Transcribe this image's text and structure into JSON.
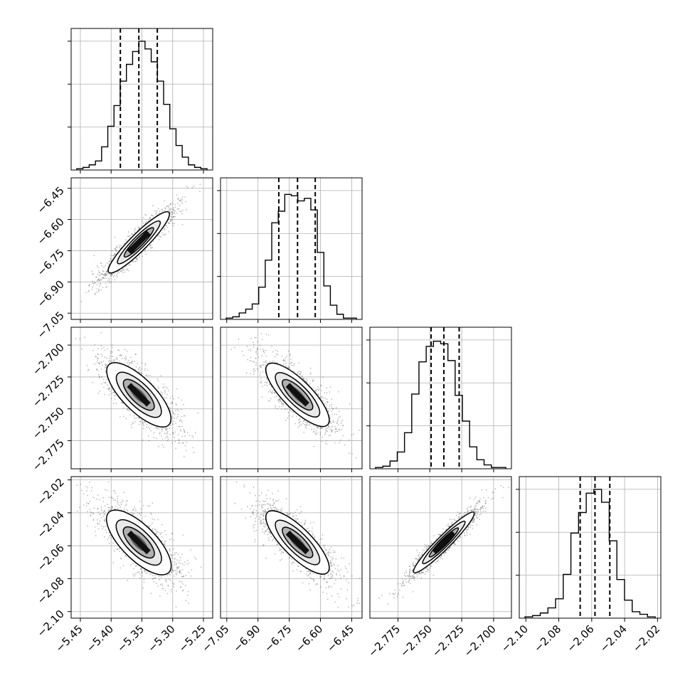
{
  "chart_data": {
    "type": "corner",
    "description_type": "scatter",
    "parameters": [
      {
        "ticks": [
          "-5.45",
          "-5.40",
          "-5.35",
          "-5.30",
          "-5.25"
        ],
        "tick_values": [
          -5.45,
          -5.4,
          -5.35,
          -5.3,
          -5.25
        ],
        "range": [
          -5.465,
          -5.235
        ],
        "quantiles": [
          -5.385,
          -5.355,
          -5.325
        ]
      },
      {
        "ticks": [
          "-7.05",
          "-6.90",
          "-6.75",
          "-6.60",
          "-6.45"
        ],
        "tick_values": [
          -7.05,
          -6.9,
          -6.75,
          -6.6,
          -6.45
        ],
        "range": [
          -7.08,
          -6.4
        ],
        "quantiles": [
          -6.8,
          -6.71,
          -6.625
        ]
      },
      {
        "ticks": [
          "-2.775",
          "-2.750",
          "-2.725",
          "-2.700"
        ],
        "tick_values": [
          -2.775,
          -2.75,
          -2.725,
          -2.7
        ],
        "range": [
          -2.797,
          -2.686
        ],
        "quantiles": [
          -2.749,
          -2.739,
          -2.727
        ]
      },
      {
        "ticks": [
          "-2.10",
          "-2.08",
          "-2.06",
          "-2.04",
          "-2.02"
        ],
        "tick_values": [
          -2.1,
          -2.08,
          -2.06,
          -2.04,
          -2.02
        ],
        "range": [
          -2.104,
          -2.018
        ],
        "quantiles": [
          -2.067,
          -2.058,
          -2.049
        ]
      }
    ],
    "histograms": [
      [
        0.01,
        0.02,
        0.04,
        0.07,
        0.18,
        0.34,
        0.5,
        0.69,
        0.82,
        0.92,
        1.0,
        0.94,
        0.84,
        0.69,
        0.51,
        0.32,
        0.19,
        0.1,
        0.04,
        0.02,
        0.01
      ],
      [
        0.01,
        0.02,
        0.05,
        0.08,
        0.12,
        0.25,
        0.46,
        0.75,
        0.84,
        0.97,
        0.96,
        0.92,
        0.94,
        0.85,
        0.52,
        0.26,
        0.11,
        0.04,
        0.01,
        0.01
      ],
      [
        0.01,
        0.02,
        0.06,
        0.13,
        0.28,
        0.58,
        0.83,
        0.95,
        0.99,
        0.97,
        0.84,
        0.57,
        0.37,
        0.17,
        0.07,
        0.03,
        0.01,
        0.01
      ],
      [
        0.01,
        0.02,
        0.04,
        0.08,
        0.15,
        0.34,
        0.66,
        0.82,
        0.97,
        1.0,
        0.9,
        0.6,
        0.3,
        0.14,
        0.05,
        0.03,
        0.01
      ]
    ],
    "correlations": [
      [
        1,
        0.95,
        -0.82,
        -0.8
      ],
      [
        0.95,
        1,
        -0.86,
        -0.86
      ],
      [
        -0.82,
        -0.86,
        1,
        0.97
      ],
      [
        -0.8,
        -0.86,
        0.97,
        1
      ]
    ],
    "grid": true,
    "contour_levels": 3,
    "quantile_lines": "dashed"
  }
}
